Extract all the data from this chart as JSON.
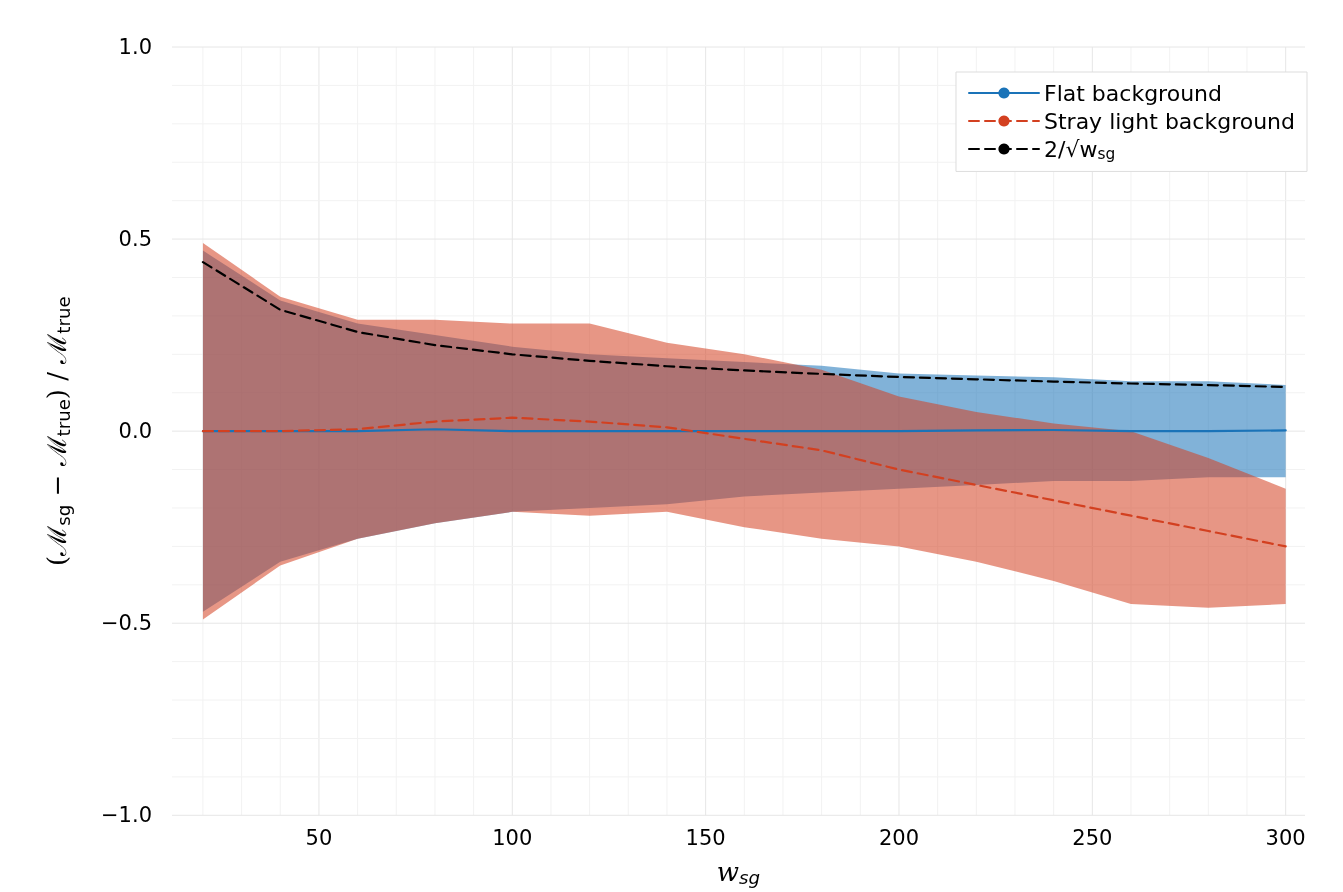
{
  "chart_data": {
    "type": "line",
    "xlabel": "w$_{sg}$",
    "ylabel": "(ℳ$_{sg}$ − ℳ$_{true}$) / ℳ$_{true}$",
    "x": [
      20,
      40,
      60,
      80,
      100,
      120,
      140,
      160,
      180,
      200,
      220,
      240,
      260,
      280,
      300
    ],
    "series": [
      {
        "name": "Flat background",
        "color": "#1a73b8",
        "line_style": "solid",
        "values": [
          0,
          0,
          0,
          0.005,
          0,
          0,
          0,
          0,
          0,
          0,
          0.002,
          0.003,
          0,
          0,
          0.002
        ],
        "lower": [
          -0.47,
          -0.34,
          -0.28,
          -0.24,
          -0.21,
          -0.2,
          -0.19,
          -0.17,
          -0.16,
          -0.15,
          -0.14,
          -0.13,
          -0.13,
          -0.12,
          -0.12
        ],
        "upper": [
          0.47,
          0.34,
          0.28,
          0.25,
          0.22,
          0.2,
          0.19,
          0.18,
          0.17,
          0.15,
          0.145,
          0.14,
          0.13,
          0.13,
          0.12
        ]
      },
      {
        "name": "Stray light background",
        "color": "#d34020",
        "line_style": "dashed",
        "values": [
          0,
          0,
          0.005,
          0.025,
          0.035,
          0.025,
          0.01,
          -0.02,
          -0.05,
          -0.1,
          -0.14,
          -0.18,
          -0.22,
          -0.26,
          -0.3
        ],
        "lower": [
          -0.49,
          -0.35,
          -0.28,
          -0.24,
          -0.21,
          -0.22,
          -0.21,
          -0.25,
          -0.28,
          -0.3,
          -0.34,
          -0.39,
          -0.45,
          -0.46,
          -0.45
        ],
        "upper": [
          0.49,
          0.35,
          0.29,
          0.29,
          0.28,
          0.28,
          0.23,
          0.2,
          0.16,
          0.09,
          0.05,
          0.02,
          0,
          -0.07,
          -0.15
        ]
      },
      {
        "name": "2/√w$_{sg}$",
        "color": "#000000",
        "line_style": "dashed",
        "values": [
          0.44,
          0.316,
          0.258,
          0.224,
          0.2,
          0.183,
          0.169,
          0.158,
          0.149,
          0.141,
          0.135,
          0.129,
          0.124,
          0.12,
          0.115
        ]
      }
    ],
    "xlim": [
      12,
      305
    ],
    "xticks": [
      50,
      100,
      150,
      200,
      250,
      300
    ],
    "ylim": [
      -1,
      1
    ],
    "yticks": [
      {
        "value": -1,
        "label": "−1.0"
      },
      {
        "value": -0.5,
        "label": "−0.5"
      },
      {
        "value": 0,
        "label": "0.0"
      },
      {
        "value": 0.5,
        "label": "0.5"
      },
      {
        "value": 1,
        "label": "1.0"
      }
    ],
    "grid": true,
    "legend": "top right",
    "marker": "none"
  }
}
